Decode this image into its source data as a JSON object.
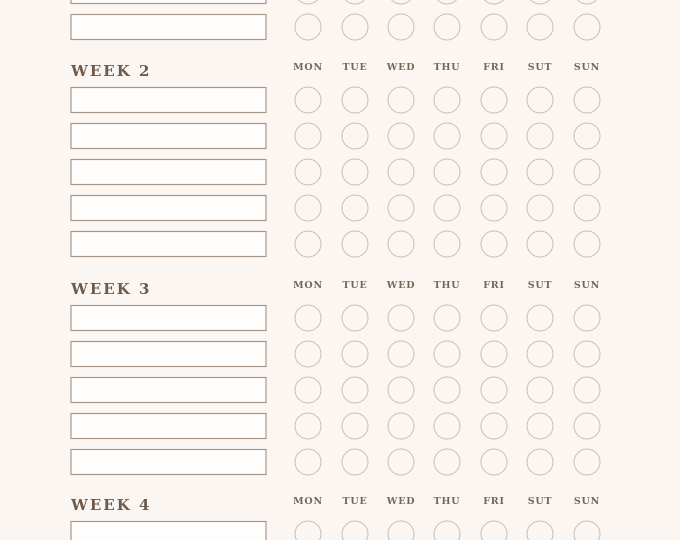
{
  "weeks": [
    {
      "title": "WEEK 2",
      "days": [
        "MON",
        "TUE",
        "WED",
        "THU",
        "FRI",
        "SUT",
        "SUN"
      ]
    },
    {
      "title": "WEEK 3",
      "days": [
        "MON",
        "TUE",
        "WED",
        "THU",
        "FRI",
        "SUT",
        "SUN"
      ]
    },
    {
      "title": "WEEK 4",
      "days": [
        "MON",
        "TUE",
        "WED",
        "THU",
        "FRI",
        "SUT",
        "SUN"
      ]
    }
  ]
}
